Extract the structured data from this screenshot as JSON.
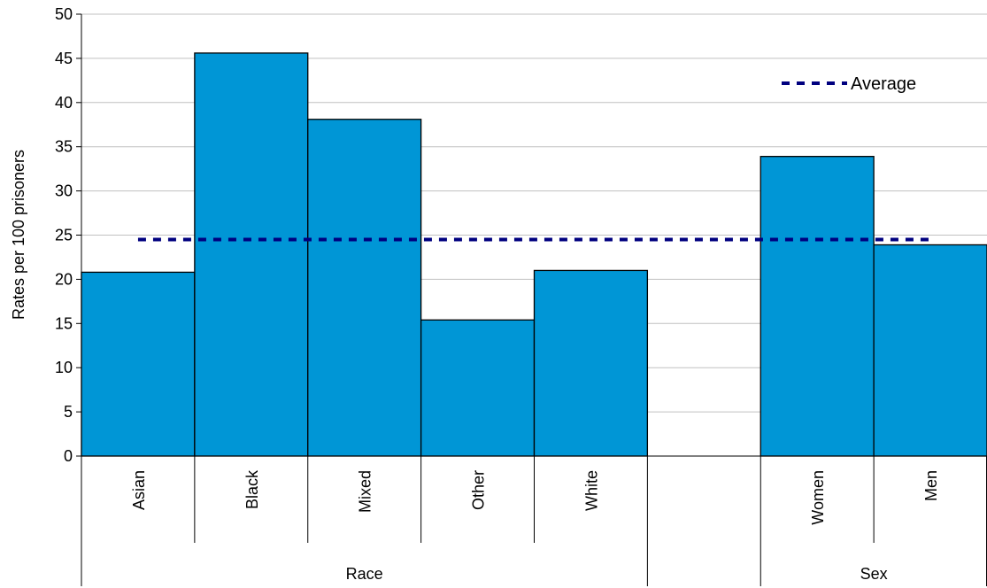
{
  "chart_data": {
    "type": "bar",
    "title": "",
    "ylabel": "Rates per 100 prisoners",
    "xlabel": "",
    "ylim": [
      0,
      50
    ],
    "yticks": [
      0,
      5,
      10,
      15,
      20,
      25,
      30,
      35,
      40,
      45,
      50
    ],
    "grid": "horizontal",
    "bar_color": "#0096D6",
    "average_color": "#00007F",
    "categories": [
      "Asian",
      "Black",
      "Mixed",
      "Other",
      "White",
      "",
      "Women",
      "Men"
    ],
    "values": [
      20.8,
      45.6,
      38.1,
      15.4,
      21.0,
      null,
      33.9,
      23.9
    ],
    "groups": [
      {
        "label": "Race",
        "categories": [
          "Asian",
          "Black",
          "Mixed",
          "Other",
          "White"
        ]
      },
      {
        "label": "Sex",
        "categories": [
          "Women",
          "Men"
        ]
      }
    ],
    "average": {
      "name": "Average",
      "value": 24.5
    },
    "legend_position": "top-right"
  }
}
